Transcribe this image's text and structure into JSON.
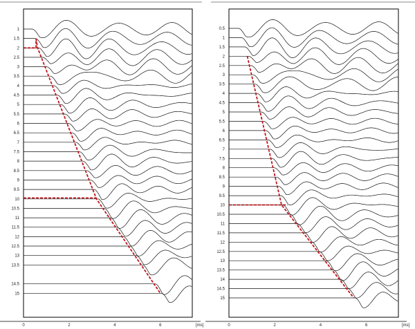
{
  "chart_data": [
    {
      "type": "line",
      "panel": "left",
      "xlabel": "[ms]",
      "xticks": [
        0,
        2,
        4,
        6
      ],
      "xlim": [
        0,
        7.4
      ],
      "ylim": [
        -0.06,
        16.27
      ],
      "y_reversed": true,
      "grid": false,
      "trace_labels": [
        "1",
        "1.5",
        "2",
        "2.5",
        "3",
        "3.5",
        "4",
        "4.5",
        "5",
        "5.5",
        "6",
        "6.5",
        "7",
        "7.5",
        "8",
        "8.5",
        "9",
        "9.5",
        "10",
        "10.5",
        "11",
        "11.5",
        "12",
        "12.5",
        "13",
        "13.5",
        "14.5",
        "15"
      ],
      "pick_line_color": "#c0161b",
      "pick_lines": [
        [
          [
            0,
            2
          ],
          [
            0.55,
            2
          ],
          [
            0.55,
            1.5
          ]
        ],
        [
          [
            0.55,
            1.5
          ],
          [
            0.62,
            2
          ],
          [
            3.2,
            10
          ],
          [
            6.0,
            15
          ]
        ],
        [
          [
            0,
            9.95
          ],
          [
            3.2,
            9.95
          ]
        ]
      ]
    },
    {
      "type": "line",
      "panel": "right",
      "xlabel": "[ms]",
      "xticks": [
        0,
        2,
        4,
        6
      ],
      "xlim": [
        0,
        7.4
      ],
      "ylim": [
        -0.54,
        16.04
      ],
      "y_reversed": true,
      "grid": false,
      "trace_labels": [
        "0.5",
        "1",
        "1.5",
        "2",
        "2.5",
        "3",
        "3.5",
        "4",
        "4.5",
        "5",
        "5.5",
        "6",
        "6.5",
        "7",
        "7.5",
        "8",
        "8.5",
        "9",
        "9.5",
        "10",
        "10.5",
        "11",
        "11.5",
        "12",
        "12.5",
        "13",
        "13.5",
        "14",
        "14.5",
        "15"
      ],
      "pick_line_color": "#c0161b",
      "pick_lines": [
        [
          [
            0.8,
            2
          ],
          [
            2.3,
            10
          ],
          [
            5.45,
            15
          ]
        ],
        [
          [
            0,
            10
          ],
          [
            2.55,
            10
          ]
        ]
      ]
    }
  ]
}
